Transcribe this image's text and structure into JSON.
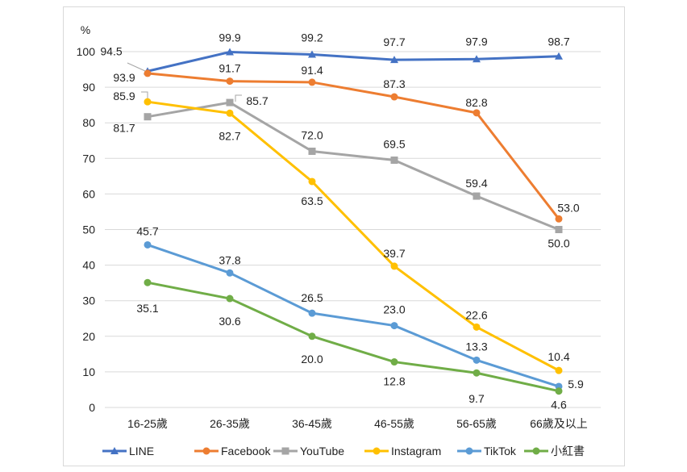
{
  "chart_data": {
    "type": "line",
    "ylabel": "%",
    "ylim": [
      0,
      100
    ],
    "yticks": [
      0,
      10,
      20,
      30,
      40,
      50,
      60,
      70,
      80,
      90,
      100
    ],
    "grid": true,
    "legend_position": "bottom",
    "categories": [
      "16-25歲",
      "26-35歲",
      "36-45歲",
      "46-55歲",
      "56-65歲",
      "66歲及以上"
    ],
    "series": [
      {
        "name": "LINE",
        "color": "#4472c4",
        "marker": "triangle",
        "values": [
          94.5,
          99.9,
          99.2,
          97.7,
          97.9,
          98.7
        ]
      },
      {
        "name": "Facebook",
        "color": "#ed7d31",
        "marker": "circle",
        "values": [
          93.9,
          91.7,
          91.4,
          87.3,
          82.8,
          53.0
        ]
      },
      {
        "name": "YouTube",
        "color": "#a5a5a5",
        "marker": "square",
        "values": [
          81.7,
          85.7,
          72.0,
          69.5,
          59.4,
          50.0
        ]
      },
      {
        "name": "Instagram",
        "color": "#ffc000",
        "marker": "circle",
        "values": [
          85.9,
          82.7,
          63.5,
          39.7,
          22.6,
          10.4
        ]
      },
      {
        "name": "TikTok",
        "color": "#5b9bd5",
        "marker": "circle",
        "values": [
          45.7,
          37.8,
          26.5,
          23.0,
          13.3,
          5.9
        ]
      },
      {
        "name": "小紅書",
        "color": "#70ad47",
        "marker": "circle",
        "values": [
          35.1,
          30.6,
          20.0,
          12.8,
          9.7,
          4.6
        ]
      }
    ]
  }
}
